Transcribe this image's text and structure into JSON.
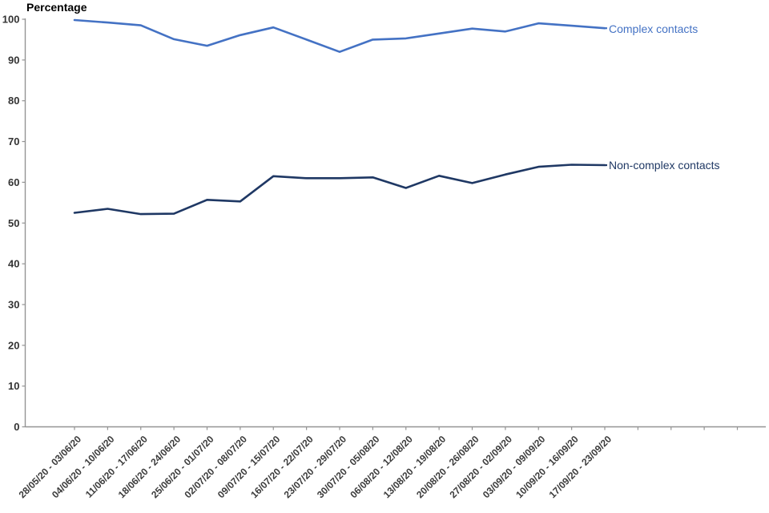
{
  "chart_data": {
    "type": "line",
    "title": "Percentage",
    "categories": [
      "28/05/20 - 03/06/20",
      "04/06/20 - 10/06/20",
      "11/06/20 - 17/06/20",
      "18/06/20 - 24/06/20",
      "25/06/20 - 01/07/20",
      "02/07/20 - 08/07/20",
      "09/07/20 - 15/07/20",
      "16/07/20 - 22/07/20",
      "23/07/20 - 29/07/20",
      "30/07/20 - 05/08/20",
      "06/08/20 - 12/08/20",
      "13/08/20 - 19/08/20",
      "20/08/20 - 26/08/20",
      "27/08/20 - 02/09/20",
      "03/09/20 - 09/09/20",
      "10/09/20 - 16/09/20",
      "17/09/20 - 23/09/20"
    ],
    "series": [
      {
        "name": "Complex contacts",
        "color": "#4472c4",
        "values": [
          99.8,
          99.2,
          98.5,
          95.1,
          93.5,
          96.1,
          98.0,
          95.0,
          92.0,
          95.0,
          95.3,
          96.5,
          97.7,
          97.0,
          99.0,
          98.4,
          97.8
        ]
      },
      {
        "name": "Non-complex contacts",
        "color": "#1f3864",
        "values": [
          52.5,
          53.5,
          52.2,
          52.3,
          55.7,
          55.3,
          61.5,
          61.0,
          61.0,
          61.2,
          58.6,
          61.6,
          59.8,
          61.9,
          63.8,
          64.3,
          64.2
        ]
      }
    ],
    "xlabel": "",
    "ylabel": "Percentage",
    "ylim": [
      0,
      100
    ],
    "ytick_step": 10,
    "yticks": [
      0,
      10,
      20,
      30,
      40,
      50,
      60,
      70,
      80,
      90,
      100
    ],
    "grid": "off",
    "legend_position": "inline-right-of-lines"
  },
  "colors": {
    "axis": "#949494",
    "tick_label": "#333333",
    "date_label": "#3b3b3b",
    "title": "#000000"
  }
}
